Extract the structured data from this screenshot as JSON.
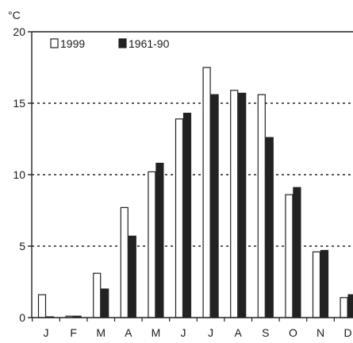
{
  "chart_data": {
    "type": "bar",
    "title": "",
    "ylabel": "°C",
    "xlabel": "",
    "ylim": [
      0,
      20
    ],
    "yticks": [
      0,
      5,
      10,
      15,
      20
    ],
    "grid": "dashed horizontal at 5, 10, 15",
    "legend_position": "top-left",
    "categories": [
      "J",
      "F",
      "M",
      "A",
      "M",
      "J",
      "J",
      "A",
      "S",
      "O",
      "N",
      "D"
    ],
    "series": [
      {
        "name": "1999",
        "color": "#ffffff",
        "values": [
          1.6,
          0.1,
          3.1,
          7.7,
          10.2,
          13.9,
          17.5,
          15.9,
          15.6,
          8.6,
          4.6,
          1.4
        ]
      },
      {
        "name": "1961-90",
        "color": "#222222",
        "values": [
          0.0,
          0.1,
          2.0,
          5.7,
          10.8,
          14.3,
          15.6,
          15.7,
          12.6,
          9.1,
          4.7,
          1.6
        ]
      }
    ]
  }
}
